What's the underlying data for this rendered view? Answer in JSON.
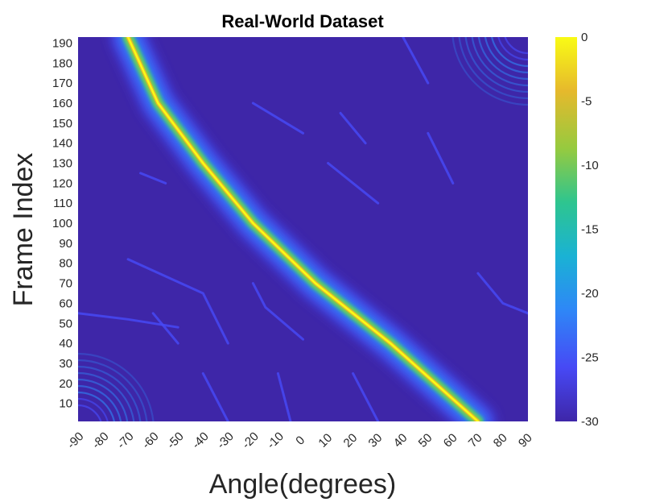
{
  "chart_data": {
    "type": "heatmap",
    "title": "Real-World Dataset",
    "xlabel": "Angle(degrees)",
    "ylabel": "Frame Index",
    "x_ticks": [
      -90,
      -80,
      -70,
      -60,
      -50,
      -40,
      -30,
      -20,
      -10,
      0,
      10,
      20,
      30,
      40,
      50,
      60,
      70,
      80,
      90
    ],
    "y_ticks": [
      10,
      20,
      30,
      40,
      50,
      60,
      70,
      80,
      90,
      100,
      110,
      120,
      130,
      140,
      150,
      160,
      170,
      180,
      190
    ],
    "xlim": [
      -90,
      90
    ],
    "ylim": [
      1,
      193
    ],
    "colorbar": {
      "ticks": [
        0,
        -5,
        -10,
        -15,
        -20,
        -25,
        -30
      ],
      "clim": [
        -30,
        0
      ],
      "colormap": "parula",
      "colors": [
        "#3e26a8",
        "#4749f5",
        "#2e87f7",
        "#1ab2d4",
        "#2ec58f",
        "#96ca3f",
        "#e6b92c",
        "#f9fb15"
      ]
    },
    "background_level_db": -30,
    "main_track": [
      {
        "frame": 1,
        "angle": 70
      },
      {
        "frame": 40,
        "angle": 35
      },
      {
        "frame": 70,
        "angle": 5
      },
      {
        "frame": 100,
        "angle": -20
      },
      {
        "frame": 130,
        "angle": -40
      },
      {
        "frame": 160,
        "angle": -58
      },
      {
        "frame": 193,
        "angle": -70
      }
    ],
    "main_track_peak_db": 0,
    "weak_tracks": [
      {
        "level_db": -25,
        "points": [
          {
            "frame": 55,
            "angle": -90
          },
          {
            "frame": 52,
            "angle": -70
          },
          {
            "frame": 48,
            "angle": -50
          }
        ]
      },
      {
        "level_db": -25,
        "points": [
          {
            "frame": 40,
            "angle": -50
          },
          {
            "frame": 55,
            "angle": -60
          }
        ]
      },
      {
        "level_db": -25,
        "points": [
          {
            "frame": 82,
            "angle": -70
          },
          {
            "frame": 65,
            "angle": -40
          },
          {
            "frame": 40,
            "angle": -30
          }
        ]
      },
      {
        "level_db": -25,
        "points": [
          {
            "frame": 42,
            "angle": 0
          },
          {
            "frame": 58,
            "angle": -15
          },
          {
            "frame": 70,
            "angle": -20
          }
        ]
      },
      {
        "level_db": -25,
        "points": [
          {
            "frame": 75,
            "angle": 70
          },
          {
            "frame": 60,
            "angle": 80
          },
          {
            "frame": 55,
            "angle": 90
          }
        ]
      },
      {
        "level_db": -25,
        "points": [
          {
            "frame": 130,
            "angle": 10
          },
          {
            "frame": 110,
            "angle": 30
          }
        ]
      },
      {
        "level_db": -25,
        "points": [
          {
            "frame": 160,
            "angle": -20
          },
          {
            "frame": 145,
            "angle": 0
          }
        ]
      },
      {
        "level_db": -25,
        "points": [
          {
            "frame": 155,
            "angle": 15
          },
          {
            "frame": 140,
            "angle": 25
          }
        ]
      },
      {
        "level_db": -25,
        "points": [
          {
            "frame": 145,
            "angle": 50
          },
          {
            "frame": 120,
            "angle": 60
          }
        ]
      },
      {
        "level_db": -25,
        "points": [
          {
            "frame": 193,
            "angle": 40
          },
          {
            "frame": 170,
            "angle": 50
          }
        ]
      },
      {
        "level_db": -25,
        "points": [
          {
            "frame": 125,
            "angle": -65
          },
          {
            "frame": 120,
            "angle": -55
          }
        ]
      },
      {
        "level_db": -25,
        "points": [
          {
            "frame": 25,
            "angle": -40
          },
          {
            "frame": 1,
            "angle": -30
          }
        ]
      },
      {
        "level_db": -25,
        "points": [
          {
            "frame": 25,
            "angle": -10
          },
          {
            "frame": 1,
            "angle": -5
          }
        ]
      },
      {
        "level_db": -25,
        "points": [
          {
            "frame": 25,
            "angle": 20
          },
          {
            "frame": 1,
            "angle": 30
          }
        ]
      }
    ],
    "corner_fans": [
      "bottom-left",
      "top-right"
    ],
    "grid": false,
    "legend": "colorbar-right"
  }
}
